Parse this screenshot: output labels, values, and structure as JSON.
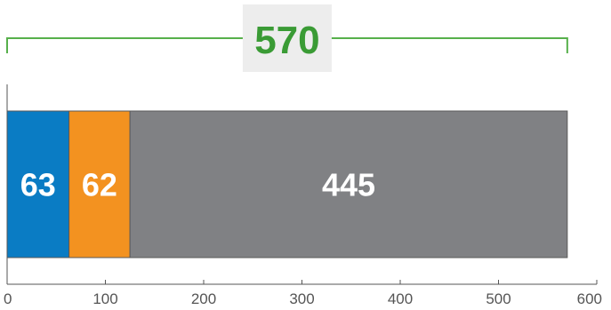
{
  "chart_data": {
    "type": "bar",
    "orientation": "horizontal",
    "stacked": true,
    "segments": [
      {
        "value": 63,
        "label": "63",
        "color": "#0a7cc4"
      },
      {
        "value": 62,
        "label": "62",
        "color": "#f39220"
      },
      {
        "value": 445,
        "label": "445",
        "color": "#808184"
      }
    ],
    "total": {
      "value": 570,
      "label": "570",
      "color": "#3a9b35",
      "bracket_color": "#57b04b",
      "box_color": "#ededed"
    },
    "xlim": [
      0,
      600
    ],
    "xticks": [
      "0",
      "100",
      "200",
      "300",
      "400",
      "500",
      "600"
    ],
    "grid": false,
    "title": "",
    "xlabel": "",
    "ylabel": ""
  }
}
